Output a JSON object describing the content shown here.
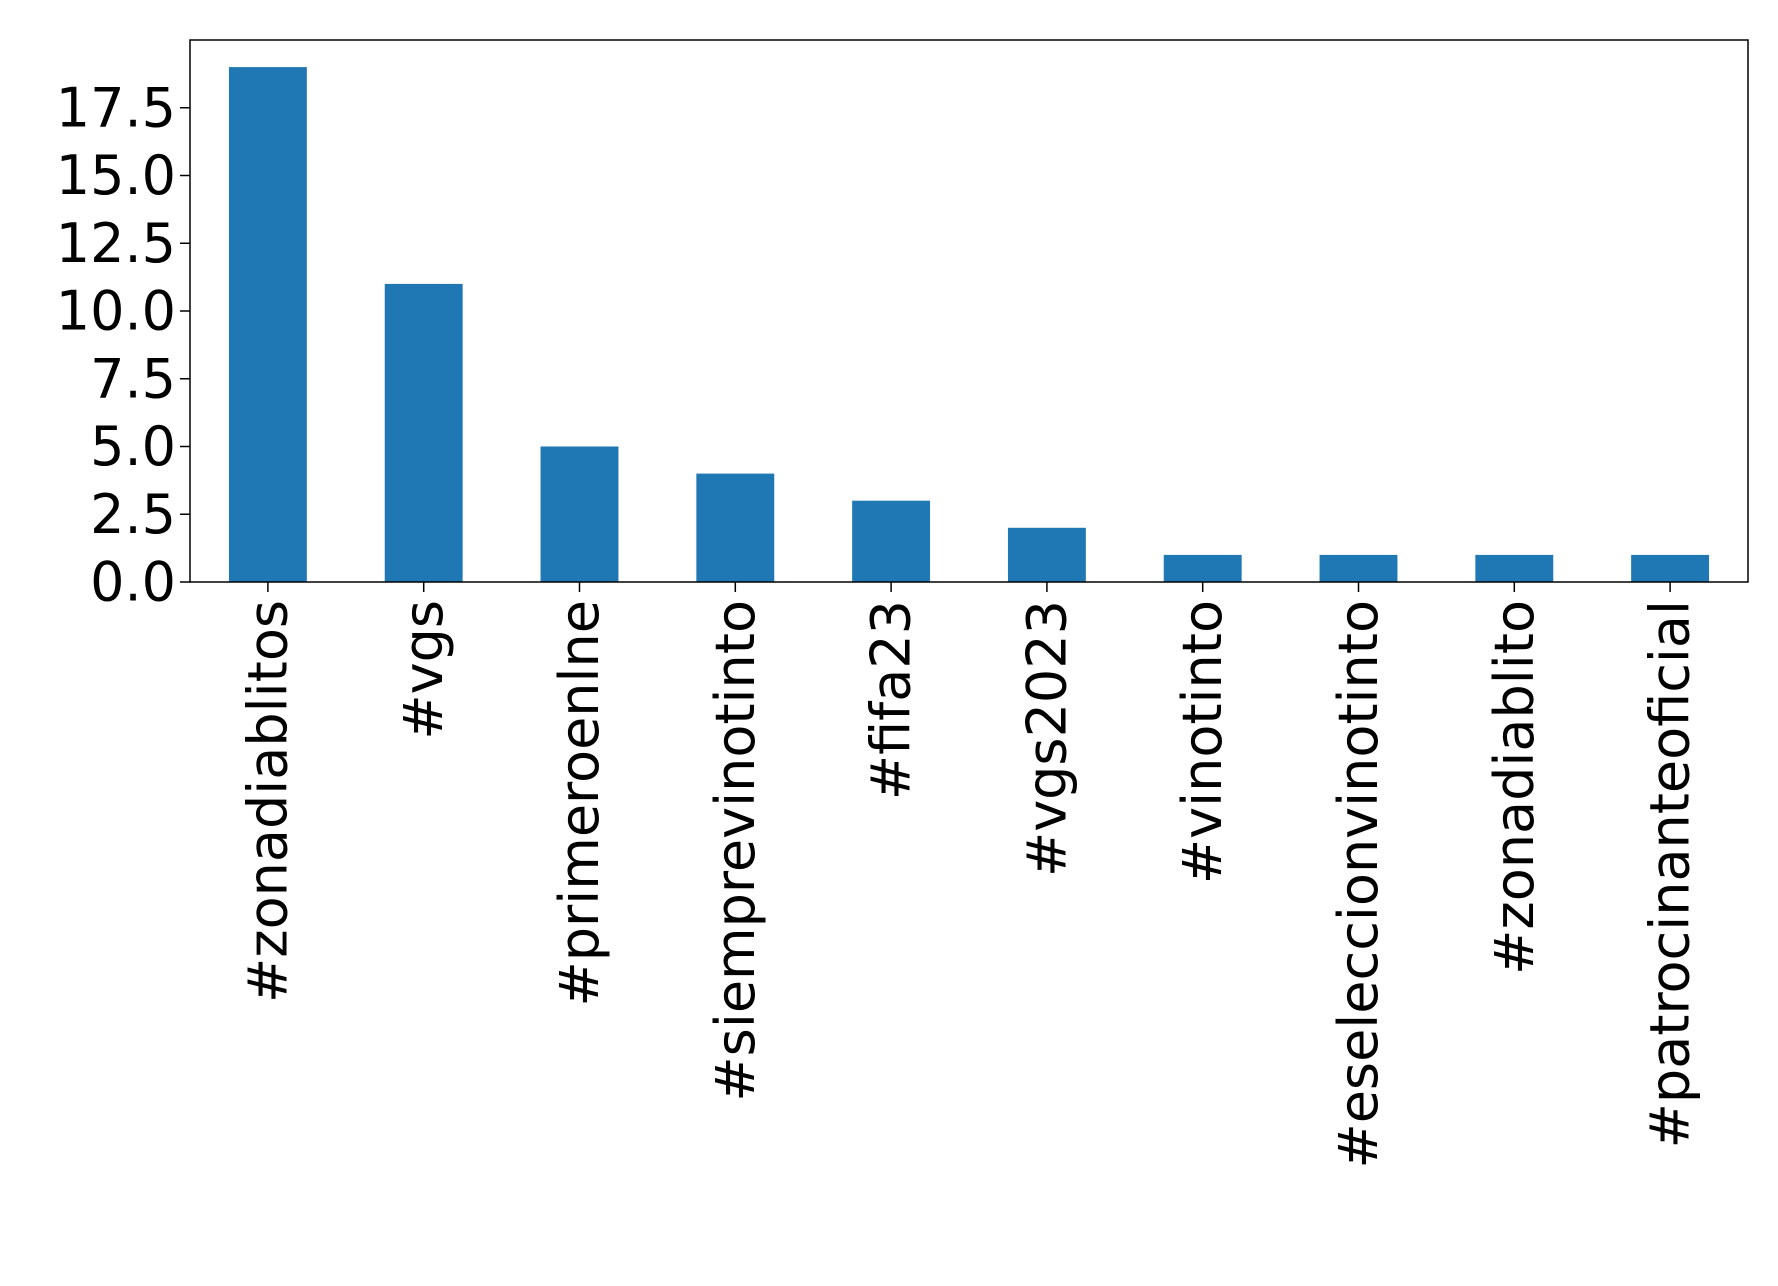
{
  "chart_data": {
    "type": "bar",
    "title": "",
    "xlabel": "",
    "ylabel": "",
    "categories": [
      "#zonadiablitos",
      "#vgs",
      "#primeroenlne",
      "#siemprevinotinto",
      "#fifa23",
      "#vgs2023",
      "#vinotinto",
      "#eseleccionvinotinto",
      "#zonadiablito",
      "#patrocinanteoficial"
    ],
    "values": [
      19,
      11,
      5,
      4,
      3,
      2,
      1,
      1,
      1,
      1
    ],
    "ylim": [
      0,
      20
    ],
    "yticks": [
      "0.0",
      "2.5",
      "5.0",
      "7.5",
      "10.0",
      "12.5",
      "15.0",
      "17.5"
    ],
    "bar_color": "#1f77b4",
    "grid": false,
    "legend": "none"
  }
}
